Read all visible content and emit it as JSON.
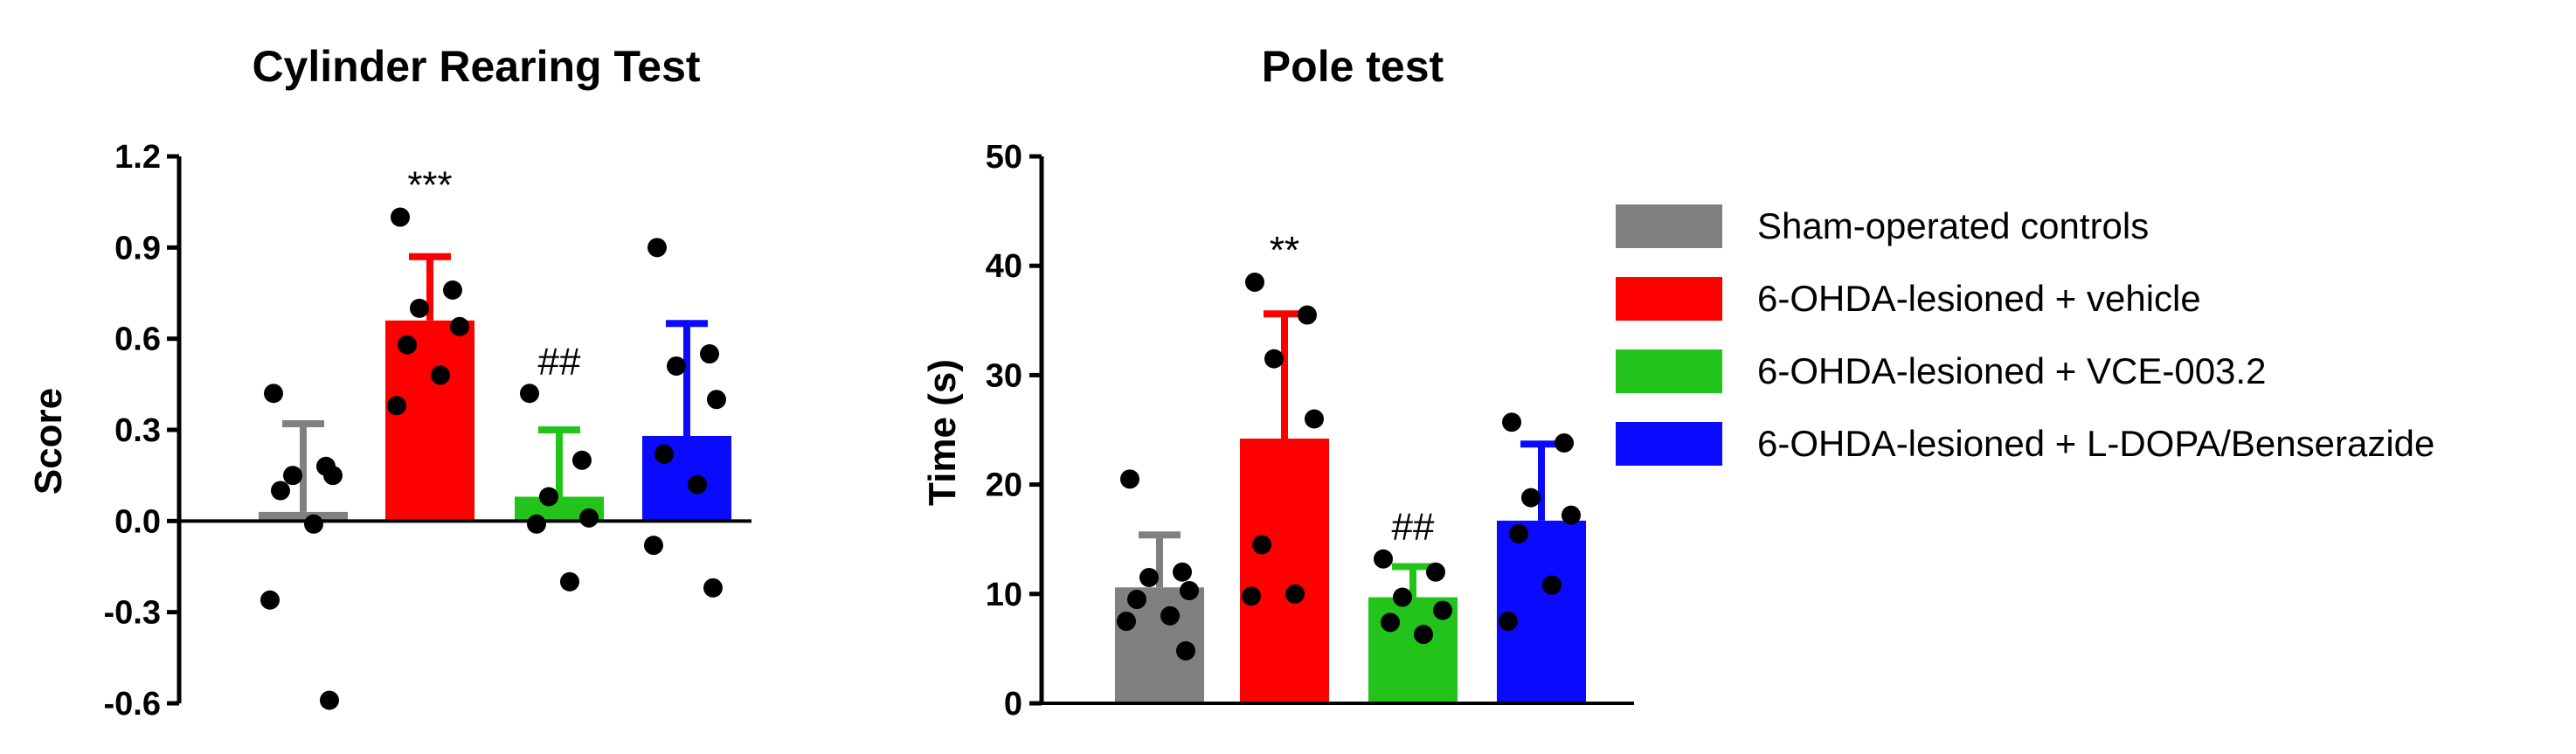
{
  "legend": {
    "position": "right",
    "items": [
      {
        "label": "Sham-operated controls",
        "color": "#808080"
      },
      {
        "label": "6-OHDA-lesioned + vehicle",
        "color": "#ff0000"
      },
      {
        "label": "6-OHDA-lesioned + VCE-003.2",
        "color": "#22c41c"
      },
      {
        "label": "6-OHDA-lesioned + L-DOPA/Benserazide",
        "color": "#0a0aff"
      }
    ]
  },
  "chart_data": [
    {
      "type": "bar",
      "title": "Cylinder Rearing Test",
      "xlabel": "",
      "ylabel": "Score",
      "ylim": [
        -0.6,
        1.2
      ],
      "yticks": [
        -0.6,
        -0.3,
        0.0,
        0.3,
        0.6,
        0.9,
        1.2
      ],
      "ytick_labels": [
        "-0.6",
        "-0.3",
        "0.0",
        "0.3",
        "0.6",
        "0.9",
        "1.2"
      ],
      "grid": false,
      "error_bars": "one-sided (away from zero)",
      "series": [
        {
          "name": "Sham-operated controls",
          "color": "#808080",
          "mean": 0.03,
          "error": 0.29,
          "points": [
            0.42,
            0.18,
            0.15,
            0.15,
            0.1,
            -0.01,
            -0.26,
            -0.59
          ],
          "annotation": ""
        },
        {
          "name": "6-OHDA-lesioned + vehicle",
          "color": "#ff0000",
          "mean": 0.66,
          "error": 0.21,
          "points": [
            1.0,
            0.76,
            0.7,
            0.64,
            0.58,
            0.48,
            0.38
          ],
          "annotation": "***"
        },
        {
          "name": "6-OHDA-lesioned + VCE-003.2",
          "color": "#22c41c",
          "mean": 0.08,
          "error": 0.22,
          "points": [
            0.42,
            0.2,
            0.08,
            0.01,
            -0.01,
            -0.2
          ],
          "annotation": "##"
        },
        {
          "name": "6-OHDA-lesioned + L-DOPA/Benserazide",
          "color": "#0a0aff",
          "mean": 0.28,
          "error": 0.37,
          "points": [
            0.9,
            0.55,
            0.51,
            0.4,
            0.22,
            0.12,
            -0.08,
            -0.22
          ],
          "annotation": ""
        }
      ]
    },
    {
      "type": "bar",
      "title": "Pole test",
      "xlabel": "",
      "ylabel": "Time (s)",
      "ylim": [
        0,
        50
      ],
      "yticks": [
        0,
        10,
        20,
        30,
        40,
        50
      ],
      "ytick_labels": [
        "0",
        "10",
        "20",
        "30",
        "40",
        "50"
      ],
      "grid": false,
      "error_bars": "one-sided (up)",
      "series": [
        {
          "name": "Sham-operated controls",
          "color": "#808080",
          "mean": 10.6,
          "error": 4.8,
          "points": [
            20.5,
            12.0,
            11.5,
            10.3,
            9.5,
            8.0,
            7.5,
            4.8
          ],
          "annotation": ""
        },
        {
          "name": "6-OHDA-lesioned + vehicle",
          "color": "#ff0000",
          "mean": 24.2,
          "error": 11.4,
          "points": [
            38.5,
            35.5,
            31.5,
            26.0,
            14.5,
            10.0,
            9.8
          ],
          "annotation": "**"
        },
        {
          "name": "6-OHDA-lesioned + VCE-003.2",
          "color": "#22c41c",
          "mean": 9.7,
          "error": 2.8,
          "points": [
            13.2,
            12.0,
            9.7,
            8.5,
            7.4,
            6.3
          ],
          "annotation": "##"
        },
        {
          "name": "6-OHDA-lesioned + L-DOPA/Benserazide",
          "color": "#0a0aff",
          "mean": 16.7,
          "error": 7.0,
          "points": [
            25.7,
            23.8,
            18.8,
            17.2,
            15.5,
            10.8,
            7.5
          ],
          "annotation": ""
        }
      ]
    }
  ]
}
